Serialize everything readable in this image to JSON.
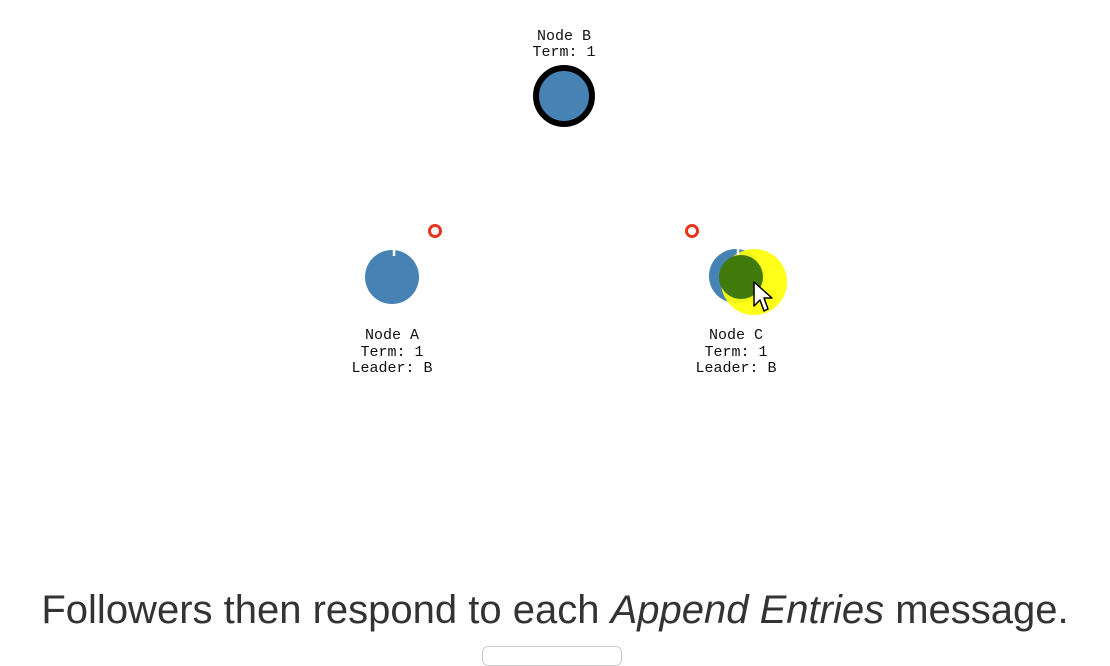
{
  "nodes": {
    "b": {
      "name": "Node B",
      "term": "Term: 1",
      "role_color": "#000000",
      "fill_color": "#4682b4"
    },
    "a": {
      "name": "Node A",
      "term": "Term: 1",
      "leader": "Leader: B",
      "fill_color": "#4682b4"
    },
    "c": {
      "name": "Node C",
      "term": "Term: 1",
      "leader": "Leader: B",
      "fill_color": "#4682b4"
    }
  },
  "colors": {
    "node_fill": "#4682b4",
    "leader_ring": "#000000",
    "message_ring": "#e8341c",
    "response_fill": "#3f7a0a",
    "cursor_highlight": "#ffff00"
  },
  "caption": {
    "before": "Followers then respond to each ",
    "emphasis": "Append Entries",
    "after": " message."
  }
}
